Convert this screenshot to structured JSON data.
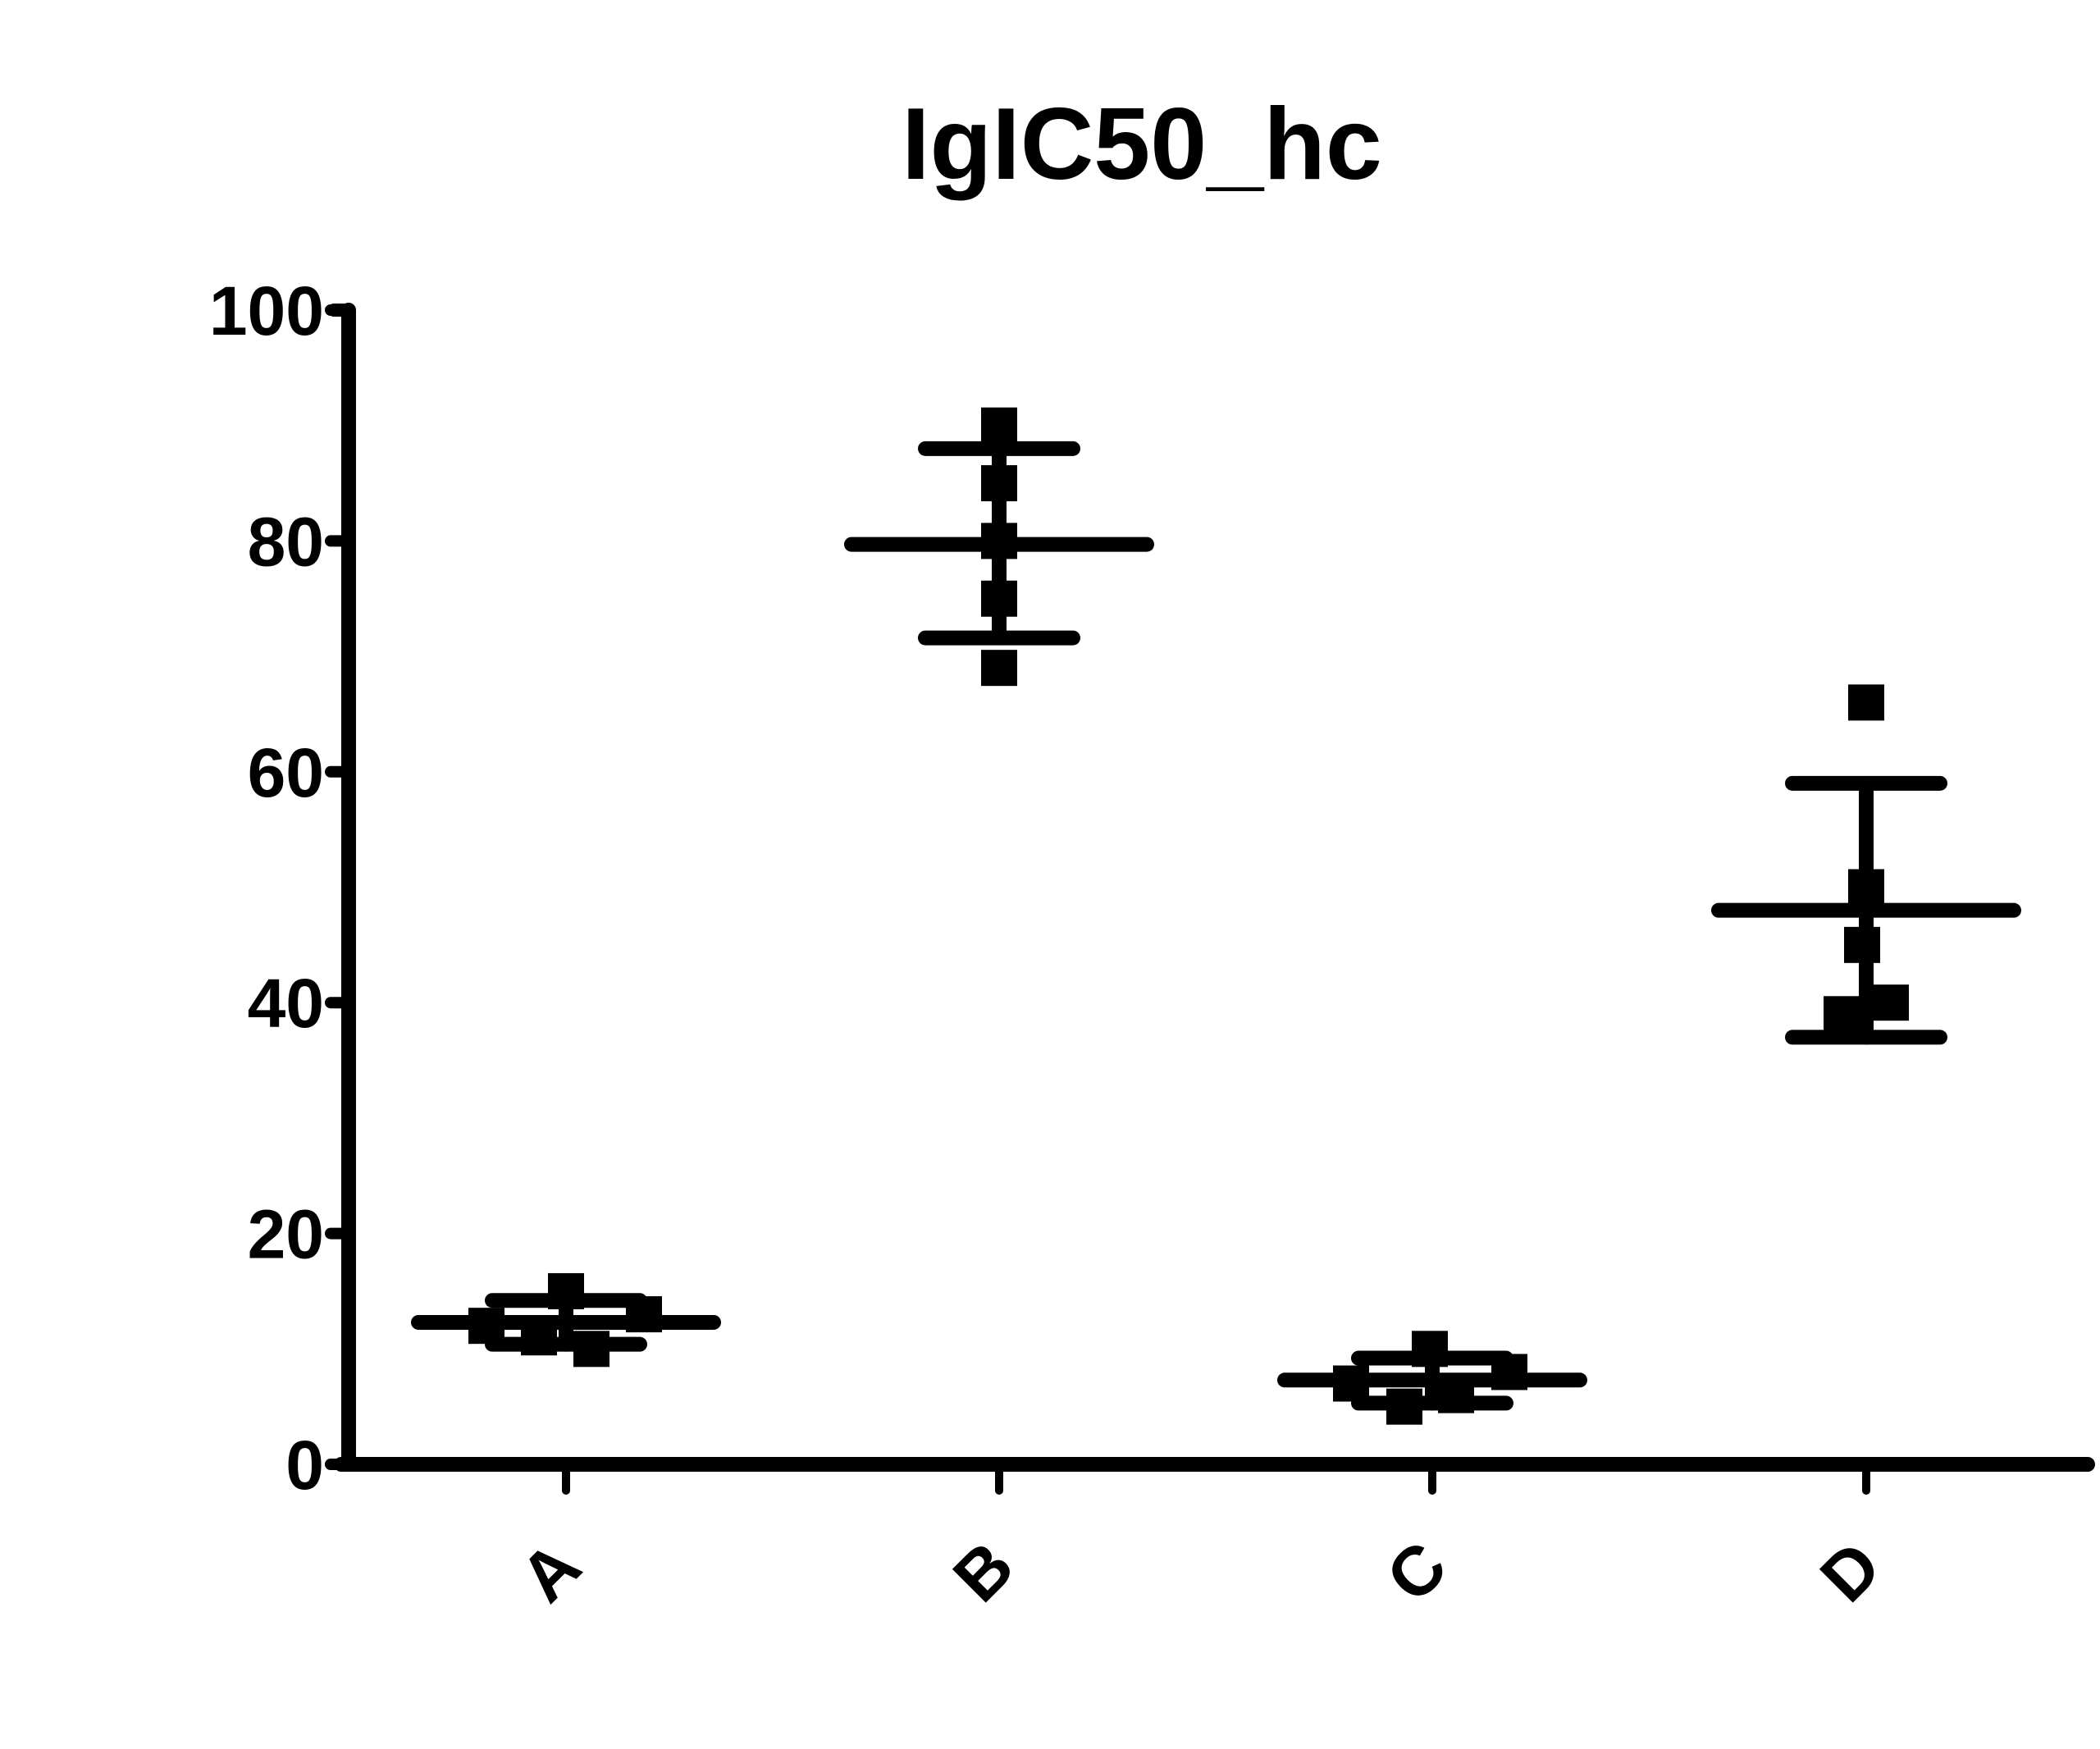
{
  "chart_data": {
    "type": "scatter",
    "subtype": "column scatter with mean and SD error bars",
    "title": "IgIC50_hc",
    "xlabel": "",
    "ylabel": "",
    "ylim": [
      0,
      100
    ],
    "yticks": [
      0,
      20,
      40,
      60,
      80,
      100
    ],
    "ytick_labels": [
      "0",
      "20",
      "40",
      "60",
      "80",
      "100"
    ],
    "categories": [
      "A",
      "B",
      "C",
      "D"
    ],
    "x_label_rotation": -45,
    "grid": false,
    "legend": null,
    "marker": "square",
    "color": "#000000",
    "groups": [
      {
        "name": "A",
        "points": [
          15,
          13,
          12,
          11,
          10
        ],
        "mean": 12.3,
        "sd_upper": 14.2,
        "sd_lower": 10.4
      },
      {
        "name": "B",
        "points": [
          90,
          85,
          80,
          75,
          69
        ],
        "mean": 79.7,
        "sd_upper": 88,
        "sd_lower": 71.6
      },
      {
        "name": "C",
        "points": [
          10,
          8,
          7,
          6,
          5
        ],
        "mean": 7.3,
        "sd_upper": 9.2,
        "sd_lower": 5.3
      },
      {
        "name": "D",
        "points": [
          66,
          50,
          45,
          40,
          39
        ],
        "mean": 48,
        "sd_upper": 59,
        "sd_lower": 37
      }
    ],
    "point_x_offsets": [
      [
        0,
        95,
        -97,
        -33,
        31
      ],
      [
        0,
        0,
        0,
        0,
        0
      ],
      [
        -3,
        94,
        -99,
        29,
        -34
      ],
      [
        0,
        0,
        -5,
        30,
        -30
      ]
    ]
  }
}
